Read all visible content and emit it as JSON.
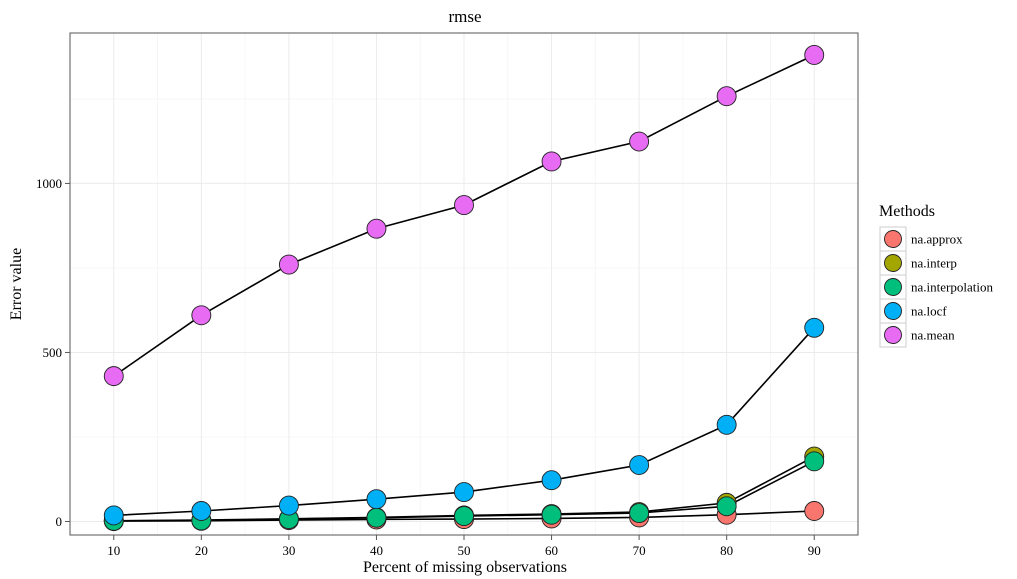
{
  "chart_data": {
    "type": "line",
    "title": "rmse",
    "xlabel": "Percent of missing observations",
    "ylabel": "Error value",
    "x": [
      10,
      20,
      30,
      40,
      50,
      60,
      70,
      80,
      90
    ],
    "xlim": [
      5,
      95
    ],
    "ylim": [
      -40,
      1445
    ],
    "y_major_ticks": [
      0,
      500,
      1000
    ],
    "y_minor_ticks": [
      250,
      750,
      1250
    ],
    "grid": true,
    "legend": {
      "title": "Methods",
      "position": "right"
    },
    "series": [
      {
        "name": "na.approx",
        "color": "#F8766D",
        "values": [
          1,
          2,
          4,
          6,
          7,
          9,
          12,
          20,
          31
        ]
      },
      {
        "name": "na.interp",
        "color": "#A3A500",
        "values": [
          2,
          4,
          8,
          12,
          18,
          22,
          28,
          55,
          192
        ]
      },
      {
        "name": "na.interpolation",
        "color": "#00BF7D",
        "values": [
          2,
          3,
          7,
          11,
          16,
          20,
          25,
          45,
          178
        ]
      },
      {
        "name": "na.locf",
        "color": "#00B0F6",
        "values": [
          18,
          31,
          47,
          66,
          87,
          122,
          167,
          286,
          573
        ]
      },
      {
        "name": "na.mean",
        "color": "#E76BF3",
        "values": [
          430,
          610,
          760,
          866,
          936,
          1065,
          1124,
          1258,
          1380
        ]
      }
    ]
  }
}
